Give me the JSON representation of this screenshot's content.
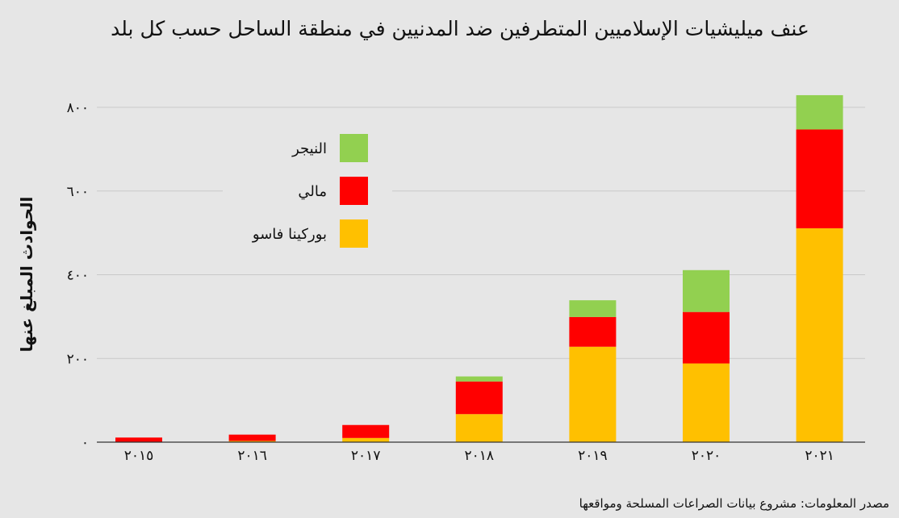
{
  "chart_data": {
    "type": "bar",
    "stacked": true,
    "title": "عنف ميليشيات الإسلاميين المتطرفين ضد المدنيين في منطقة الساحل حسب كل بلد",
    "ylabel": "الحوادث المبلغ عنها",
    "xlabel": "",
    "categories": [
      "٢٠١٥",
      "٢٠١٦",
      "٢٠١٧",
      "٢٠١٨",
      "٢٠١٩",
      "٢٠٢٠",
      "٢٠٢١"
    ],
    "ylim": [
      0,
      830
    ],
    "yticks": [
      0,
      200,
      400,
      600,
      800
    ],
    "ytick_labels": [
      "٠",
      "٢٠٠",
      "٤٠٠",
      "٦٠٠",
      "٨٠٠"
    ],
    "grid": true,
    "legend_position": "top-left",
    "series": [
      {
        "name": "بوركينا فاسو",
        "color": "#ffc000",
        "values": [
          0,
          3,
          10,
          67,
          228,
          188,
          511
        ]
      },
      {
        "name": "مالي",
        "color": "#ff0000",
        "values": [
          11,
          15,
          31,
          78,
          71,
          123,
          236
        ]
      },
      {
        "name": "النيجر",
        "color": "#92d050",
        "values": [
          0,
          0,
          0,
          12,
          40,
          100,
          82
        ]
      }
    ],
    "legend_order": [
      "النيجر",
      "مالي",
      "بوركينا فاسو"
    ]
  },
  "source": "مصدر المعلومات: مشروع بيانات الصراعات المسلحة ومواقعها"
}
